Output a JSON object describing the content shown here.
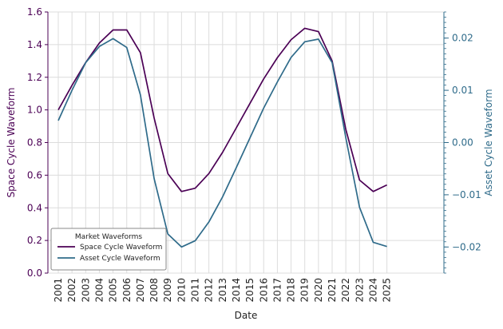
{
  "chart_data": {
    "type": "line",
    "xlabel": "Date",
    "x": [
      "2001",
      "2002",
      "2003",
      "2004",
      "2005",
      "2006",
      "2007",
      "2008",
      "2009",
      "2010",
      "2011",
      "2012",
      "2013",
      "2014",
      "2015",
      "2016",
      "2017",
      "2018",
      "2019",
      "2020",
      "2021",
      "2022",
      "2023",
      "2024",
      "2025"
    ],
    "y_left": {
      "label": "Space Cycle Waveform",
      "lim": [
        0.0,
        1.6
      ],
      "ticks": [
        "0.0",
        "0.2",
        "0.4",
        "0.6",
        "0.8",
        "1.0",
        "1.2",
        "1.4",
        "1.6"
      ],
      "color": "#4b0055"
    },
    "y_right": {
      "label": "Asset Cycle Waveform",
      "lim": [
        -0.025,
        0.025
      ],
      "ticks": [
        "−0.02",
        "−0.01",
        "0.00",
        "0.01",
        "0.02"
      ],
      "color": "#2f6b8a"
    },
    "series": [
      {
        "name": "Space Cycle Waveform",
        "axis": "left",
        "color": "#4b0055",
        "values": [
          1.0,
          1.15,
          1.29,
          1.41,
          1.49,
          1.49,
          1.35,
          0.95,
          0.61,
          0.5,
          0.52,
          0.61,
          0.74,
          0.89,
          1.04,
          1.19,
          1.32,
          1.43,
          1.5,
          1.48,
          1.3,
          0.88,
          0.57,
          0.5,
          0.54
        ]
      },
      {
        "name": "Asset Cycle Waveform",
        "axis": "right",
        "color": "#2f6b8a",
        "values": [
          0.0042,
          0.01,
          0.0153,
          0.0184,
          0.0199,
          0.0182,
          0.0091,
          -0.0069,
          -0.0175,
          -0.02,
          -0.0188,
          -0.0152,
          -0.0104,
          -0.0048,
          0.0009,
          0.0066,
          0.0116,
          0.0163,
          0.0193,
          0.0198,
          0.0153,
          0.0009,
          -0.0124,
          -0.0191,
          -0.0199
        ]
      }
    ],
    "legend": {
      "title": "Market Waveforms",
      "position": "lower-left",
      "entries": [
        "Space Cycle Waveform",
        "Asset Cycle Waveform"
      ]
    },
    "grid": true
  }
}
